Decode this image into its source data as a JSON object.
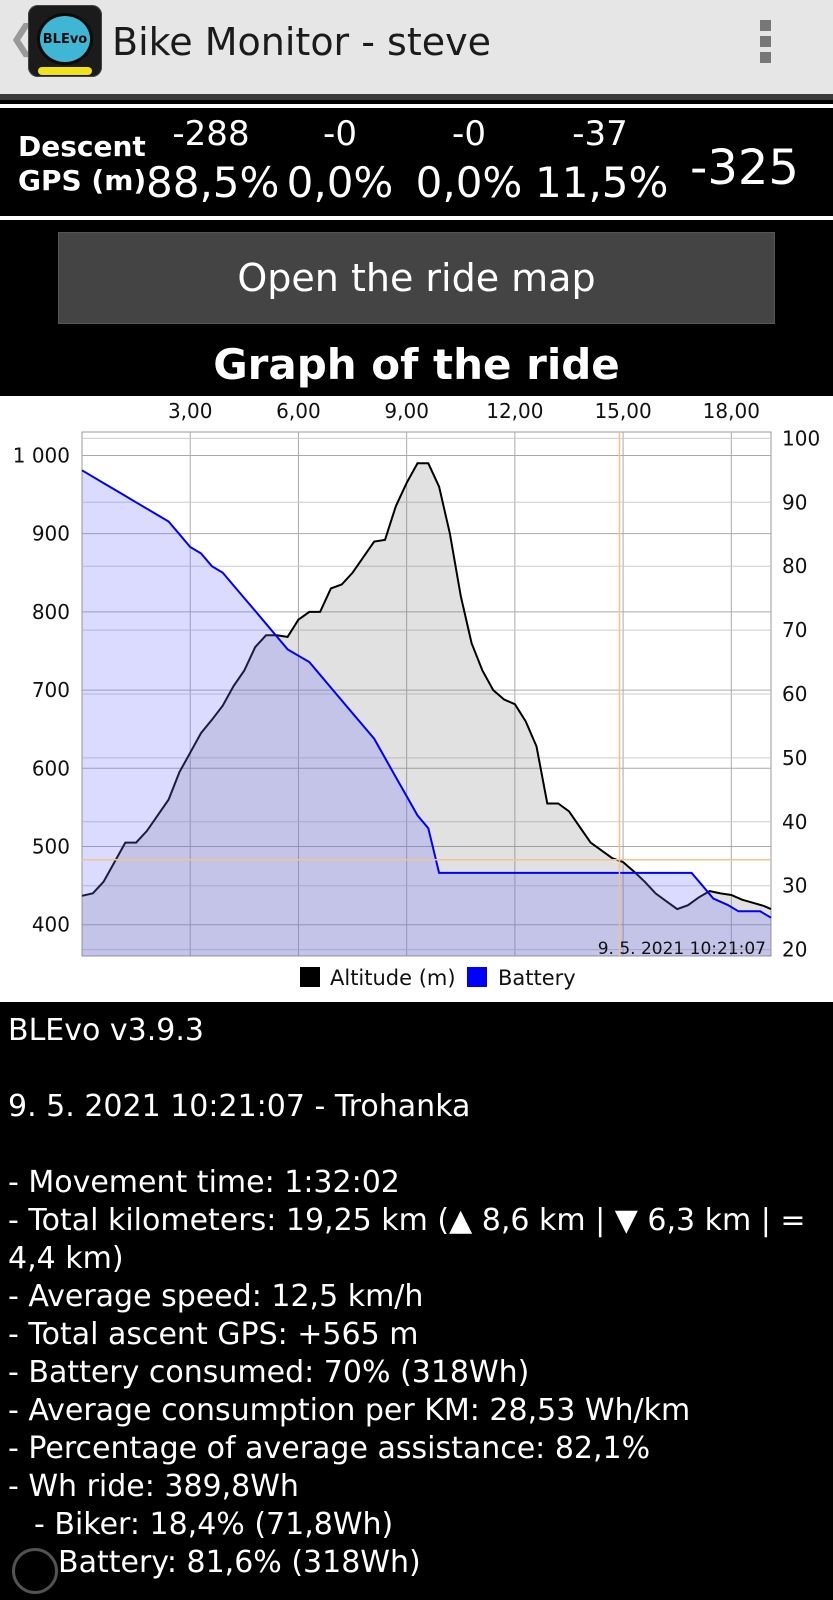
{
  "app_bar": {
    "back_glyph": "❮",
    "logo_text": "BLEvo",
    "title": "Bike Monitor - steve",
    "overflow_icon": "more-vert-icon"
  },
  "descent": {
    "label_line1": "Descent",
    "label_line2": "GPS (m)",
    "values": [
      "-288",
      "-0",
      "-0",
      "-37"
    ],
    "percents": [
      "88,5%",
      "0,0%",
      "0,0%",
      "11,5%"
    ],
    "total": "-325"
  },
  "map_button": {
    "label": "Open the ride map"
  },
  "graph": {
    "title": "Graph of the ride"
  },
  "chart_data": {
    "type": "line",
    "x_ticks": [
      "3,00",
      "6,00",
      "9,00",
      "12,00",
      "15,00",
      "18,00"
    ],
    "x_tick_values": [
      3,
      6,
      9,
      12,
      15,
      18
    ],
    "xlim": [
      0,
      19.1
    ],
    "y_left_ticks": [
      "1 000",
      "900",
      "800",
      "700",
      "600",
      "500",
      "400"
    ],
    "y_left_tick_values": [
      1000,
      900,
      800,
      700,
      600,
      500,
      400
    ],
    "ylim_left": [
      360,
      1030
    ],
    "y_right_ticks": [
      "100",
      "90",
      "80",
      "70",
      "60",
      "50",
      "40",
      "30",
      "20"
    ],
    "y_right_tick_values": [
      100,
      90,
      80,
      70,
      60,
      50,
      40,
      30,
      20
    ],
    "ylim_right": [
      19,
      101
    ],
    "grid": true,
    "legend": "bottom",
    "cursor": {
      "x": 14.9,
      "y_left": 483,
      "label": "9. 5. 2021 10:21:07"
    },
    "series": [
      {
        "name": "Altitude (m)",
        "axis": "left",
        "color": "#000000",
        "x": [
          0,
          0.3,
          0.6,
          0.9,
          1.2,
          1.5,
          1.8,
          2.1,
          2.4,
          2.7,
          3.0,
          3.3,
          3.6,
          3.9,
          4.2,
          4.5,
          4.8,
          5.1,
          5.4,
          5.7,
          6.0,
          6.3,
          6.6,
          6.9,
          7.2,
          7.5,
          7.8,
          8.1,
          8.4,
          8.7,
          9.0,
          9.3,
          9.6,
          9.9,
          10.2,
          10.5,
          10.8,
          11.1,
          11.4,
          11.7,
          12.0,
          12.3,
          12.6,
          12.9,
          13.2,
          13.5,
          13.8,
          14.1,
          14.4,
          14.7,
          15.0,
          15.3,
          15.6,
          15.9,
          16.2,
          16.5,
          16.8,
          17.1,
          17.4,
          17.7,
          18.0,
          18.3,
          18.6,
          18.9,
          19.1
        ],
        "y": [
          437,
          440,
          455,
          480,
          505,
          505,
          520,
          540,
          560,
          595,
          620,
          645,
          662,
          680,
          705,
          725,
          755,
          770,
          770,
          768,
          790,
          800,
          800,
          830,
          835,
          850,
          870,
          890,
          892,
          935,
          965,
          990,
          990,
          960,
          900,
          820,
          760,
          725,
          700,
          688,
          682,
          660,
          628,
          555,
          555,
          545,
          525,
          505,
          495,
          485,
          480,
          468,
          455,
          440,
          430,
          420,
          425,
          435,
          443,
          440,
          438,
          432,
          428,
          424,
          420
        ]
      },
      {
        "name": "Battery",
        "axis": "right",
        "color": "#0000ff",
        "x": [
          0,
          0.3,
          0.6,
          0.9,
          1.2,
          1.5,
          1.8,
          2.1,
          2.4,
          2.7,
          3.0,
          3.3,
          3.6,
          3.9,
          4.2,
          4.5,
          4.8,
          5.1,
          5.4,
          5.7,
          6.0,
          6.3,
          6.6,
          6.9,
          7.2,
          7.5,
          7.8,
          8.1,
          8.4,
          8.7,
          9.0,
          9.3,
          9.6,
          9.9,
          10.5,
          11.0,
          12.0,
          13.0,
          14.0,
          15.0,
          16.0,
          16.5,
          16.9,
          17.2,
          17.5,
          17.9,
          18.2,
          18.5,
          18.8,
          19.1
        ],
        "y": [
          95,
          94,
          93,
          92,
          91,
          90,
          89,
          88,
          87,
          85,
          83,
          82,
          80,
          79,
          77,
          75,
          73,
          71,
          69,
          67,
          66,
          65,
          63,
          61,
          59,
          57,
          55,
          53,
          50,
          47,
          44,
          41,
          39,
          32,
          32,
          32,
          32,
          32,
          32,
          32,
          32,
          32,
          32,
          30,
          28,
          27,
          26,
          26,
          26,
          25
        ]
      }
    ]
  },
  "info": {
    "version": "BLEvo v3.9.3",
    "ride": "9. 5. 2021 10:21:07 - Trohanka",
    "lines": [
      "- Movement time: 1:32:02",
      "- Total kilometers: 19,25 km (▲ 8,6 km | ▼ 6,3 km | = 4,4 km)",
      "- Average speed: 12,5 km/h",
      "- Total ascent GPS: +565 m",
      "- Battery consumed: 70% (318Wh)",
      "- Average consumption per KM: 28,53 Wh/km",
      "- Percentage of average assistance: 82,1%",
      "- Wh ride: 389,8Wh"
    ],
    "sublines": [
      "- Biker: 18,4% (71,8Wh)",
      "Battery: 81,6% (318Wh)"
    ]
  }
}
